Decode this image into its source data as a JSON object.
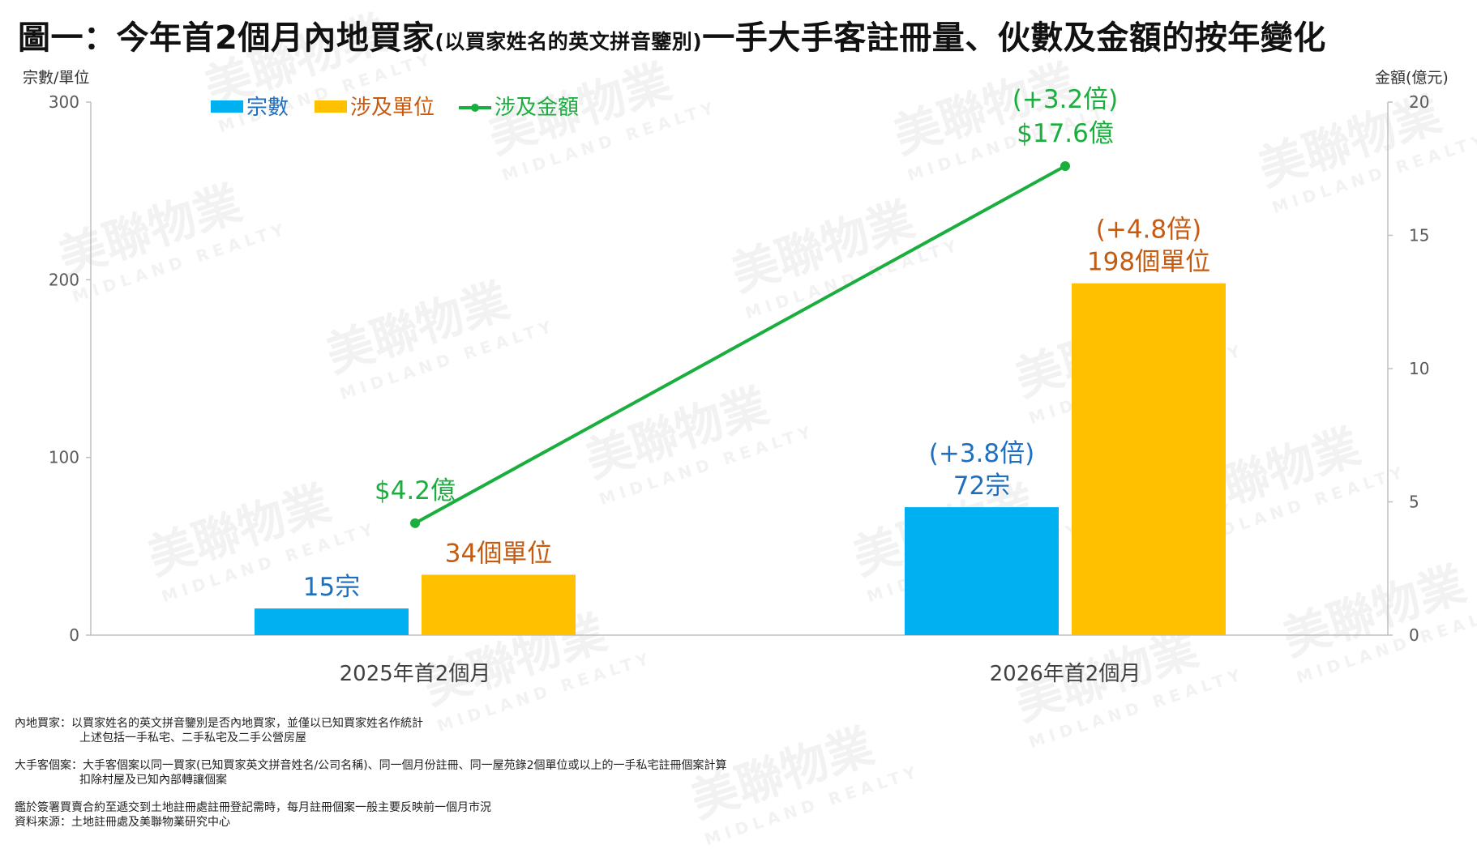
{
  "title": {
    "main_a": "圖一：今年首2個月內地買家",
    "sub": "(以買家姓名的英文拼音鑒別)",
    "main_b": "一手大手客註冊量、伙數及金額的按年變化"
  },
  "chart_data": {
    "type": "bar",
    "categories": [
      "2025年首2個月",
      "2026年首2個月"
    ],
    "series": [
      {
        "name": "宗數",
        "kind": "bar",
        "axis": "left",
        "color": "#00B0F0",
        "values": [
          15,
          72
        ],
        "labels": [
          "15宗",
          "72宗"
        ],
        "changes": [
          "",
          "(+3.8倍)"
        ],
        "label_color": "#1F6FBF"
      },
      {
        "name": "涉及單位",
        "kind": "bar",
        "axis": "left",
        "color": "#FFC000",
        "values": [
          34,
          198
        ],
        "labels": [
          "34個單位",
          "198個單位"
        ],
        "changes": [
          "",
          "(+4.8倍)"
        ],
        "label_color": "#C55A11"
      },
      {
        "name": "涉及金額",
        "kind": "line",
        "axis": "right",
        "color": "#1AAE3F",
        "values": [
          4.2,
          17.6
        ],
        "labels": [
          "$4.2億",
          "$17.6億"
        ],
        "changes": [
          "",
          "(+3.2倍)"
        ],
        "label_color": "#1AAE3F"
      }
    ],
    "ylabel_left": "宗數/單位",
    "ylabel_right": "金額(億元)",
    "ylim_left": [
      0,
      300
    ],
    "ylim_right": [
      0,
      20
    ],
    "yticks_left": [
      "0",
      "100",
      "200",
      "300"
    ],
    "yticks_right": [
      "0",
      "5",
      "10",
      "15",
      "20"
    ],
    "legend_position": "top-left",
    "grid": false
  },
  "notes": {
    "n1": "內地買家：以買家姓名的英文拼音鑒別是否內地買家，並僅以已知買家姓名作統計",
    "n1b": "上述包括一手私宅、二手私宅及二手公營房屋",
    "n2": "大手客個案：大手客個案以同一買家(已知買家英文拼音姓名/公司名稱)、同一個月份註冊、同一屋苑錄2個單位或以上的一手私宅註冊個案計算",
    "n2b": "扣除村屋及已知內部轉讓個案",
    "n3": "鑑於簽署買賣合約至遞交到土地註冊處註冊登記需時，每月註冊個案一般主要反映前一個月市況",
    "n4": "資料來源：土地註冊處及美聯物業研究中心"
  },
  "watermark": {
    "text": "美聯物業",
    "sub": "MIDLAND REALTY"
  }
}
